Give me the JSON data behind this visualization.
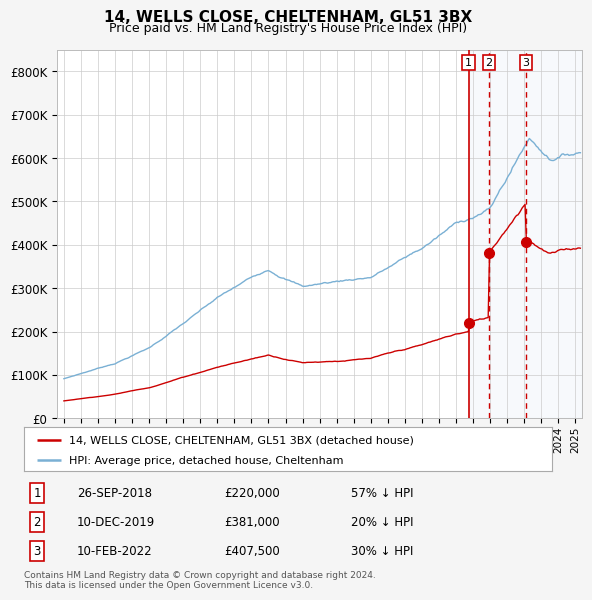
{
  "title": "14, WELLS CLOSE, CHELTENHAM, GL51 3BX",
  "subtitle": "Price paid vs. HM Land Registry's House Price Index (HPI)",
  "hpi_color": "#7ab0d4",
  "price_color": "#cc0000",
  "background_color": "#f5f5f5",
  "plot_bg_color": "#ffffff",
  "ylim": [
    0,
    850000
  ],
  "yticks": [
    0,
    100000,
    200000,
    300000,
    400000,
    500000,
    600000,
    700000,
    800000
  ],
  "ytick_labels": [
    "£0",
    "£100K",
    "£200K",
    "£300K",
    "£400K",
    "£500K",
    "£600K",
    "£700K",
    "£800K"
  ],
  "transactions": [
    {
      "label": "1",
      "date": "26-SEP-2018",
      "price": 220000,
      "year": 2018.74,
      "hpi_pct": "57% ↓ HPI"
    },
    {
      "label": "2",
      "date": "10-DEC-2019",
      "price": 381000,
      "year": 2019.94,
      "hpi_pct": "20% ↓ HPI"
    },
    {
      "label": "3",
      "date": "10-FEB-2022",
      "price": 407500,
      "year": 2022.11,
      "hpi_pct": "30% ↓ HPI"
    }
  ],
  "legend_label_price": "14, WELLS CLOSE, CHELTENHAM, GL51 3BX (detached house)",
  "legend_label_hpi": "HPI: Average price, detached house, Cheltenham",
  "footer": "Contains HM Land Registry data © Crown copyright and database right 2024.\nThis data is licensed under the Open Government Licence v3.0.",
  "xlim_left": 1994.6,
  "xlim_right": 2025.4
}
